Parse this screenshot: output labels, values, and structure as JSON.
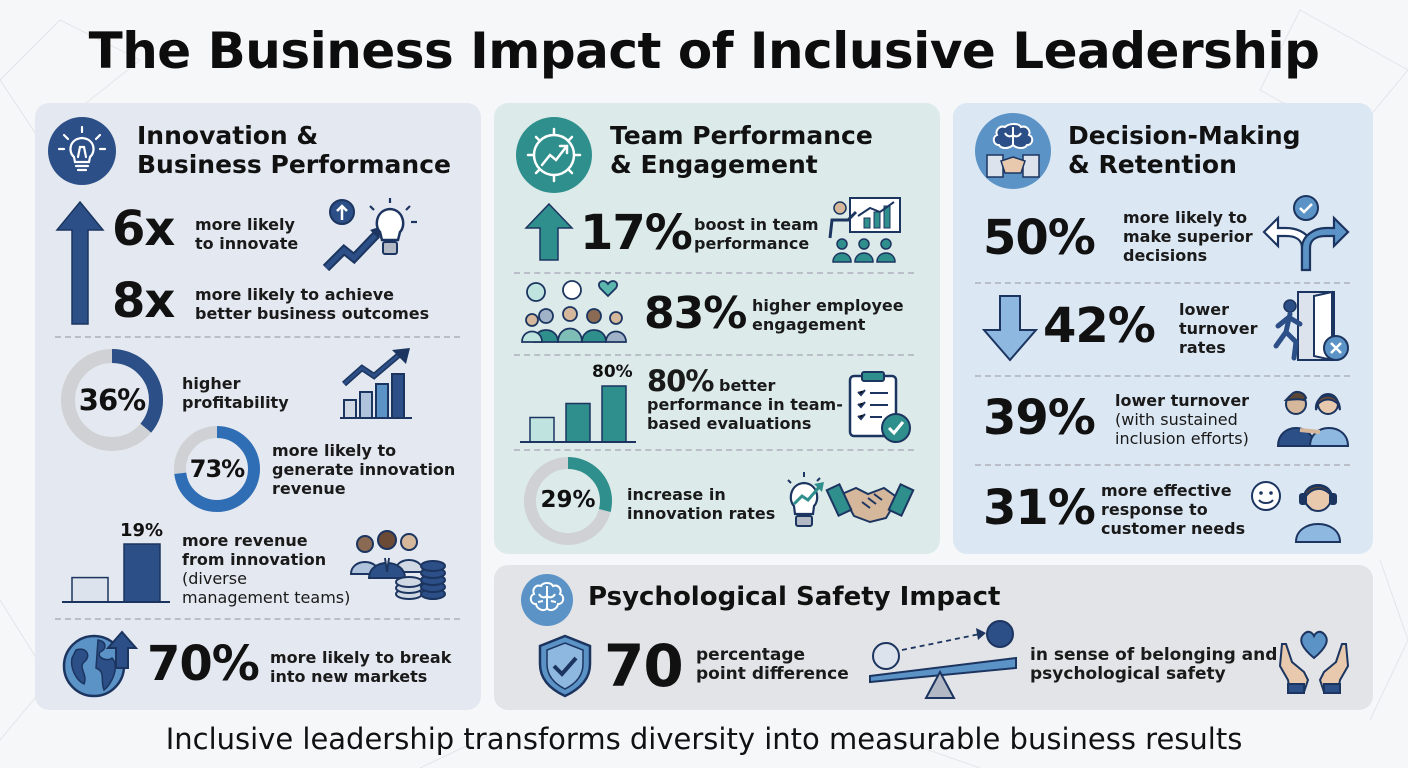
{
  "title": "The Business Impact of Inclusive Leadership",
  "footer": "Inclusive leadership transforms diversity into measurable business results",
  "colors": {
    "navy": "#2b4f86",
    "teal": "#2f8f8c",
    "sky": "#5b93c7",
    "gray_ring": "#cfd1d4"
  },
  "innovation": {
    "title_line1": "Innovation &",
    "title_line2": "Business Performance",
    "icon": "lightbulb-icon",
    "stat_6x": {
      "value": "6x",
      "line1": "more likely",
      "line2": "to innovate"
    },
    "stat_8x": {
      "value": "8x",
      "line1": "more likely to achieve",
      "line2": "better business outcomes"
    },
    "profitability": {
      "value": "36%",
      "percent": 36,
      "line1": "higher",
      "line2": "profitability"
    },
    "innovation_revenue": {
      "value": "73%",
      "percent": 73,
      "line1": "more likely to",
      "line2": "generate innovation",
      "line3": "revenue"
    },
    "diverse_revenue": {
      "bar_label": "19%",
      "bar_values": [
        8,
        19
      ],
      "line1": "more revenue",
      "line2": "from innovation",
      "line3": "(diverse",
      "line4": "management teams)"
    },
    "new_markets": {
      "value": "70%",
      "line1": "more likely to break",
      "line2": "into new markets"
    }
  },
  "team": {
    "title_line1": "Team Performance",
    "title_line2": "& Engagement",
    "icon": "gear-growth-icon",
    "boost": {
      "value": "17%",
      "line1": "boost in team",
      "line2": "performance"
    },
    "engagement": {
      "value": "83%",
      "line1": "higher employee",
      "line2": "engagement"
    },
    "evaluations": {
      "value": "80%",
      "bar_label": "80%",
      "bar_values": [
        35,
        55,
        80
      ],
      "line1_rest": "better",
      "line2": "performance in team-",
      "line3": "based evaluations"
    },
    "innovation_rates": {
      "value": "29%",
      "percent": 29,
      "line1": "increase in",
      "line2": "innovation rates"
    }
  },
  "decision": {
    "title_line1": "Decision-Making",
    "title_line2": "& Retention",
    "icon": "brain-handshake-icon",
    "decisions": {
      "value": "50%",
      "line1": "more likely to",
      "line2": "make superior",
      "line3": "decisions"
    },
    "turnover": {
      "value": "42%",
      "line1": "lower",
      "line2": "turnover",
      "line3": "rates"
    },
    "sustained": {
      "value": "39%",
      "line1": "lower turnover",
      "line2": "(with sustained",
      "line3": "inclusion efforts)"
    },
    "customer": {
      "value": "31%",
      "line1": "more effective",
      "line2": "response to",
      "line3": "customer needs"
    }
  },
  "safety": {
    "title": "Psychological Safety Impact",
    "icon": "brain-icon",
    "value": "70",
    "line1": "percentage",
    "line2": "point difference",
    "right_line1": "in sense of belonging and",
    "right_line2": "psychological safety"
  }
}
